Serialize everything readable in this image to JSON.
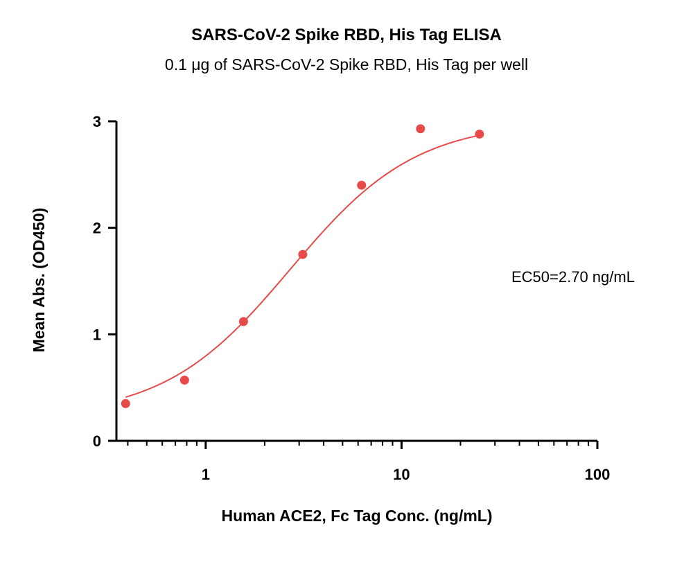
{
  "chart_data": {
    "type": "scatter",
    "title": "SARS-CoV-2 Spike RBD, His Tag ELISA",
    "subtitle": "0.1 μg of SARS-CoV-2 Spike RBD, His Tag per well",
    "xlabel": "Human ACE2, Fc Tag Conc. (ng/mL)",
    "ylabel": "Mean Abs. (OD450)",
    "xscale": "log",
    "xlim": [
      0.35,
      100
    ],
    "ylim": [
      0,
      3
    ],
    "x_ticks": [
      1,
      10,
      100
    ],
    "y_ticks": [
      0,
      1,
      2,
      3
    ],
    "grid": false,
    "color": "#e84a4a",
    "annotation": "EC50=2.70 ng/mL",
    "series": [
      {
        "x": [
          0.39,
          0.78,
          1.56,
          3.13,
          6.25,
          12.5,
          25
        ],
        "y": [
          0.35,
          0.57,
          1.12,
          1.75,
          2.4,
          2.93,
          2.88
        ]
      }
    ],
    "fit": {
      "model": "4PL",
      "bottom": 0.22,
      "top": 3.0,
      "ec50": 2.7,
      "hill": 1.35,
      "x_range": [
        0.39,
        25
      ]
    }
  }
}
